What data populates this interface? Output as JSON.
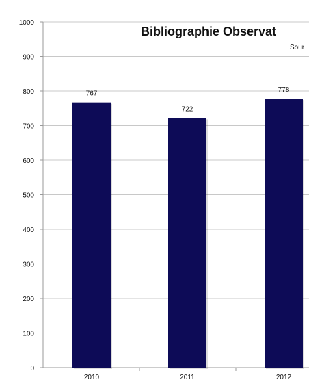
{
  "chart_data": {
    "type": "bar",
    "title": "Bibliographie Observat",
    "subtitle": "Sour",
    "categories": [
      "2010",
      "2011",
      "2012"
    ],
    "values": [
      767,
      722,
      778
    ],
    "data_labels": [
      "767",
      "722",
      "778"
    ],
    "y_ticks": [
      0,
      100,
      200,
      300,
      400,
      500,
      600,
      700,
      800,
      900,
      1000
    ],
    "ylim": [
      0,
      1000
    ],
    "grid": true,
    "legend": "none",
    "xlabel": "",
    "ylabel": "",
    "bar_color": "#0d0b57"
  }
}
